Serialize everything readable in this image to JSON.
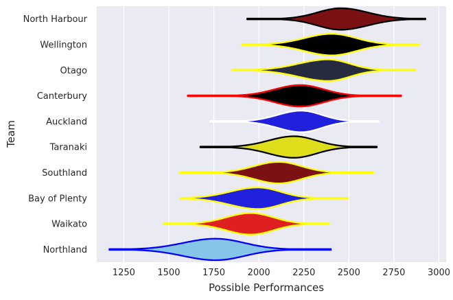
{
  "chart_data": {
    "type": "violin",
    "orientation": "horizontal",
    "xlabel": "Possible Performances",
    "ylabel": "Team",
    "xlim": [
      1100,
      3040
    ],
    "xticks": [
      1250,
      1500,
      1750,
      2000,
      2250,
      2500,
      2750,
      3000
    ],
    "grid": true,
    "background": "#eaeaf2",
    "grid_color": "#ffffff",
    "teams": [
      {
        "name": "North Harbour",
        "fill": "#7b1113",
        "edge": "#000000",
        "min": 1935,
        "max": 2925,
        "center": 2455,
        "left_sd": 130,
        "right_sd": 150
      },
      {
        "name": "Wellington",
        "fill": "#000000",
        "edge": "#ffff00",
        "min": 1905,
        "max": 2890,
        "center": 2405,
        "left_sd": 150,
        "right_sd": 135
      },
      {
        "name": "Otago",
        "fill": "#262b3f",
        "edge": "#ffff00",
        "min": 1850,
        "max": 2870,
        "center": 2385,
        "left_sd": 165,
        "right_sd": 120
      },
      {
        "name": "Canterbury",
        "fill": "#000000",
        "edge": "#ff0000",
        "min": 1605,
        "max": 2790,
        "center": 2230,
        "left_sd": 140,
        "right_sd": 130
      },
      {
        "name": "Auckland",
        "fill": "#2020dd",
        "edge": "#ffffff",
        "min": 1730,
        "max": 2665,
        "center": 2235,
        "left_sd": 130,
        "right_sd": 115
      },
      {
        "name": "Taranaki",
        "fill": "#dede1c",
        "edge": "#000000",
        "min": 1675,
        "max": 2655,
        "center": 2195,
        "left_sd": 140,
        "right_sd": 125
      },
      {
        "name": "Southland",
        "fill": "#7b1113",
        "edge": "#ffff00",
        "min": 1560,
        "max": 2635,
        "center": 2110,
        "left_sd": 135,
        "right_sd": 125
      },
      {
        "name": "Bay of Plenty",
        "fill": "#2020dd",
        "edge": "#ffff00",
        "min": 1565,
        "max": 2495,
        "center": 1995,
        "left_sd": 155,
        "right_sd": 125
      },
      {
        "name": "Waikato",
        "fill": "#df2020",
        "edge": "#ffff00",
        "min": 1470,
        "max": 2390,
        "center": 1955,
        "left_sd": 135,
        "right_sd": 125
      },
      {
        "name": "Northland",
        "fill": "#87c5e8",
        "edge": "#0000ff",
        "min": 1170,
        "max": 2400,
        "center": 1760,
        "left_sd": 180,
        "right_sd": 160
      }
    ]
  }
}
